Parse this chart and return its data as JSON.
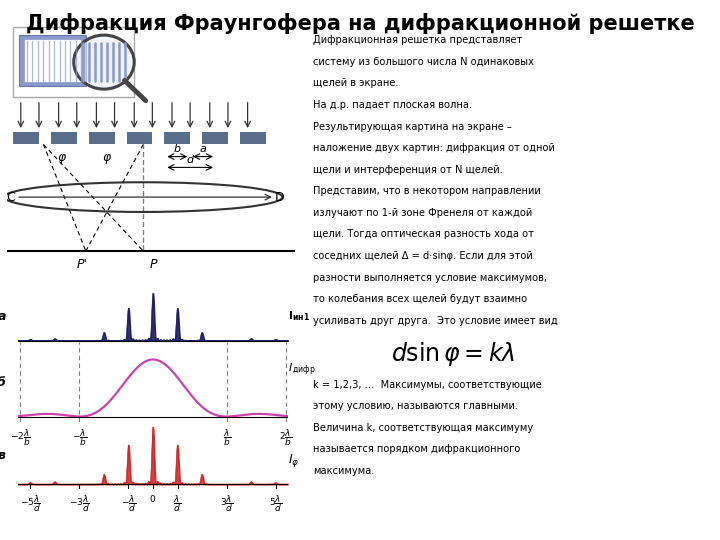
{
  "title": "Дифракция Фраунгофера на дифракционной решетке",
  "title_fontsize": 15,
  "background_color": "#ffffff",
  "text_color": "#000000",
  "text_block": [
    "Дифракционная решетка представляет",
    "систему из большого числа N одинаковых",
    "щелей в экране.",
    "На д.р. падает плоская волна.",
    "Результирующая картина на экране –",
    "наложение двух картин: дифракция от одной",
    "щели и интерференция от N щелей.",
    "Представим, что в некотором направлении",
    "излучают по 1-й зоне Френеля от каждой",
    "щели. Тогда оптическая разность хода от",
    "соседних щелей Δ = d·sinφ. Если для этой",
    "разности выполняется условие максимумов,",
    "то колебания всех щелей будут взаимно",
    "усиливать друг друга.  Это условие имеет вид"
  ],
  "formula_text": [
    "k = 1,2,3, …  Максимумы, соответствующие",
    "этому условию, называются главными.",
    "Величина k, соответствующая максимуму",
    "называется порядком дифракционного",
    "максимума."
  ],
  "diagram_colors": {
    "grating_color": "#5a6e8a",
    "lens_color": "#333333",
    "arrow_color": "#333333"
  },
  "plot_a_color": "#1a1a5e",
  "plot_b_color": "#cc44aa",
  "plot_c_color": "#cc2222",
  "b_over_d": 0.3333,
  "N_slits": 8
}
